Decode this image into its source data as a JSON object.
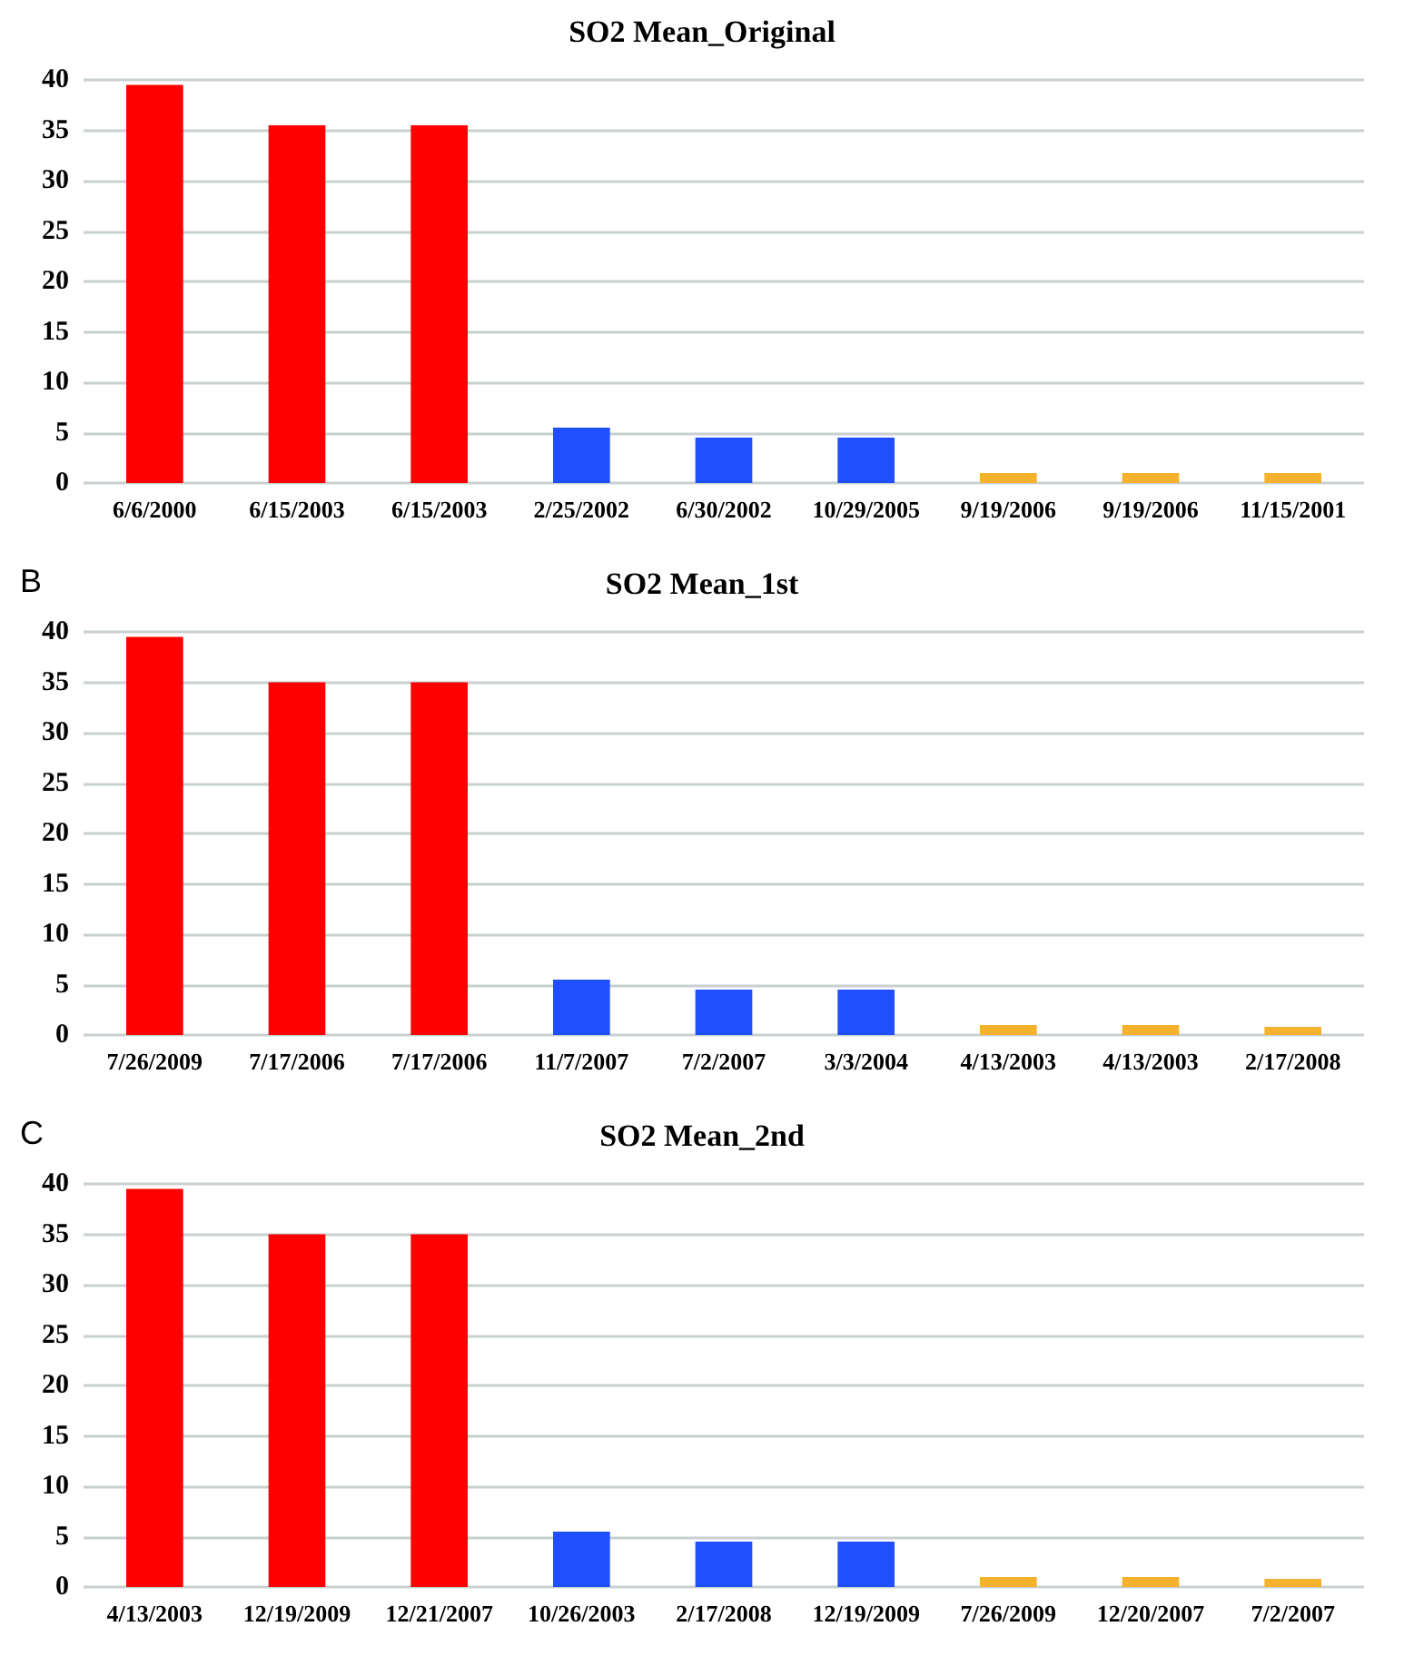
{
  "chart_data": [
    {
      "type": "bar",
      "title": "SO2 Mean_Original",
      "categories": [
        "6/6/2000",
        "6/15/2003",
        "6/15/2003",
        "2/25/2002",
        "6/30/2002",
        "10/29/2005",
        "9/19/2006",
        "9/19/2006",
        "11/15/2001"
      ],
      "values": [
        39.5,
        35.5,
        35.5,
        5.5,
        4.5,
        4.5,
        1,
        1,
        1
      ],
      "colors": [
        "#ff0000",
        "#ff0000",
        "#ff0000",
        "#1f4fff",
        "#1f4fff",
        "#1f4fff",
        "#f5b22e",
        "#f5b22e",
        "#f5b22e"
      ],
      "ylim": [
        0,
        40
      ],
      "yticks": [
        0,
        5,
        10,
        15,
        20,
        25,
        30,
        35,
        40
      ],
      "grid": "y"
    },
    {
      "type": "bar",
      "title": "SO2 Mean_1st",
      "annotations": [
        "B"
      ],
      "categories": [
        "7/26/2009",
        "7/17/2006",
        "7/17/2006",
        "11/7/2007",
        "7/2/2007",
        "3/3/2004",
        "4/13/2003",
        "4/13/2003",
        "2/17/2008"
      ],
      "values": [
        39.5,
        35,
        35,
        5.5,
        4.5,
        4.5,
        1,
        1,
        0.8
      ],
      "colors": [
        "#ff0000",
        "#ff0000",
        "#ff0000",
        "#1f4fff",
        "#1f4fff",
        "#1f4fff",
        "#f5b22e",
        "#f5b22e",
        "#f5b22e"
      ],
      "ylim": [
        0,
        40
      ],
      "yticks": [
        0,
        5,
        10,
        15,
        20,
        25,
        30,
        35,
        40
      ],
      "grid": "y"
    },
    {
      "type": "bar",
      "title": "SO2 Mean_2nd",
      "annotations": [
        "C"
      ],
      "categories": [
        "4/13/2003",
        "12/19/2009",
        "12/21/2007",
        "10/26/2003",
        "2/17/2008",
        "12/19/2009",
        "7/26/2009",
        "12/20/2007",
        "7/2/2007"
      ],
      "values": [
        39.5,
        35,
        35,
        5.5,
        4.5,
        4.5,
        1,
        1,
        0.8
      ],
      "colors": [
        "#ff0000",
        "#ff0000",
        "#ff0000",
        "#1f4fff",
        "#1f4fff",
        "#1f4fff",
        "#f5b22e",
        "#f5b22e",
        "#f5b22e"
      ],
      "ylim": [
        0,
        40
      ],
      "yticks": [
        0,
        5,
        10,
        15,
        20,
        25,
        30,
        35,
        40
      ],
      "grid": "y"
    }
  ]
}
